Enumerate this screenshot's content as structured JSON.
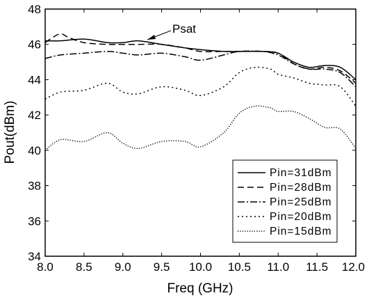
{
  "chart_data": {
    "type": "line",
    "title": "",
    "xlabel": "Freq (GHz)",
    "ylabel": "Pout(dBm)",
    "xlim": [
      8.0,
      12.0
    ],
    "ylim": [
      34,
      48
    ],
    "xticks": [
      "8.0",
      "8.5",
      "9.0",
      "9.5",
      "10.0",
      "10.5",
      "11.0",
      "11.5",
      "12.0"
    ],
    "yticks": [
      "34",
      "36",
      "38",
      "40",
      "42",
      "44",
      "46",
      "48"
    ],
    "grid": false,
    "legend_position": "bottom-right",
    "annotation": {
      "text": "Psat",
      "points_to": {
        "x": 9.3,
        "y": 46.2
      }
    },
    "series": [
      {
        "name": "Pin=31dBm",
        "dash": "",
        "x": [
          8.0,
          8.2,
          8.5,
          8.8,
          9.0,
          9.2,
          9.5,
          9.8,
          10.0,
          10.3,
          10.5,
          10.8,
          11.0,
          11.2,
          11.4,
          11.6,
          11.8,
          12.0
        ],
        "y": [
          46.2,
          46.2,
          46.3,
          46.1,
          46.1,
          46.2,
          46.0,
          45.8,
          45.7,
          45.6,
          45.6,
          45.6,
          45.5,
          45.0,
          44.7,
          44.8,
          44.7,
          44.0
        ]
      },
      {
        "name": "Pin=28dBm",
        "dash": "9,5",
        "x": [
          8.0,
          8.1,
          8.2,
          8.3,
          8.5,
          8.8,
          9.0,
          9.2,
          9.5,
          9.8,
          10.0,
          10.3,
          10.5,
          10.8,
          11.0,
          11.2,
          11.4,
          11.6,
          11.8,
          12.0
        ],
        "y": [
          46.1,
          46.4,
          46.6,
          46.4,
          46.1,
          46.0,
          46.0,
          46.0,
          46.0,
          45.8,
          45.6,
          45.6,
          45.6,
          45.6,
          45.5,
          44.9,
          44.6,
          44.7,
          44.5,
          43.8
        ]
      },
      {
        "name": "Pin=25dBm",
        "dash": "10,3,2,3",
        "x": [
          8.0,
          8.2,
          8.5,
          8.8,
          9.0,
          9.2,
          9.5,
          9.8,
          10.0,
          10.3,
          10.5,
          10.8,
          11.0,
          11.2,
          11.4,
          11.6,
          11.8,
          12.0
        ],
        "y": [
          45.2,
          45.4,
          45.5,
          45.6,
          45.5,
          45.4,
          45.5,
          45.3,
          45.1,
          45.4,
          45.6,
          45.6,
          45.4,
          44.9,
          44.6,
          44.6,
          44.4,
          43.6
        ]
      },
      {
        "name": "Pin=20dBm",
        "dash": "2,4",
        "x": [
          8.0,
          8.2,
          8.5,
          8.8,
          9.0,
          9.2,
          9.5,
          9.8,
          10.0,
          10.3,
          10.5,
          10.7,
          10.9,
          11.0,
          11.2,
          11.4,
          11.6,
          11.8,
          12.0
        ],
        "y": [
          42.9,
          43.3,
          43.4,
          43.8,
          43.3,
          43.2,
          43.6,
          43.4,
          43.1,
          43.6,
          44.4,
          44.7,
          44.6,
          44.3,
          44.1,
          43.8,
          43.7,
          43.6,
          42.5
        ]
      },
      {
        "name": "Pin=15dBm",
        "dash": "1.2,2.2",
        "x": [
          8.0,
          8.2,
          8.5,
          8.8,
          9.0,
          9.2,
          9.5,
          9.8,
          10.0,
          10.3,
          10.5,
          10.7,
          10.9,
          11.0,
          11.2,
          11.4,
          11.6,
          11.8,
          12.0
        ],
        "y": [
          40.0,
          40.6,
          40.5,
          41.0,
          40.4,
          40.1,
          40.5,
          40.5,
          40.2,
          41.0,
          42.1,
          42.5,
          42.4,
          42.2,
          42.2,
          41.8,
          41.3,
          41.2,
          40.1
        ]
      }
    ]
  }
}
